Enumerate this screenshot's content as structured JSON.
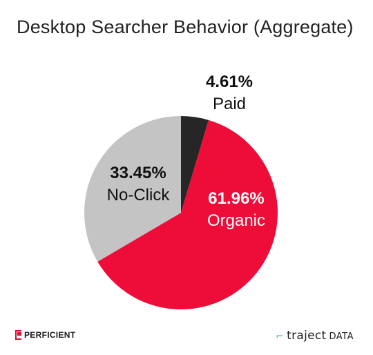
{
  "title": "Desktop Searcher Behavior (Aggregate)",
  "chart_data": {
    "type": "pie",
    "title": "Desktop Searcher Behavior (Aggregate)",
    "slices": [
      {
        "label": "Paid",
        "value": 4.61,
        "value_label": "4.61%",
        "color": "#262626",
        "label_color": "#111111"
      },
      {
        "label": "Organic",
        "value": 61.96,
        "value_label": "61.96%",
        "color": "#ee0d38",
        "label_color": "#ffffff"
      },
      {
        "label": "No-Click",
        "value": 33.45,
        "value_label": "33.45%",
        "color": "#c4c4c4",
        "label_color": "#111111"
      }
    ],
    "start_angle": "top",
    "direction": "clockwise"
  },
  "footer": {
    "left_logo_text": "PERFICIENT",
    "right_logo_word": "traject",
    "right_logo_suffix": "DATA",
    "accent_color": "#2bb3a3",
    "brand_red": "#d8102f"
  }
}
